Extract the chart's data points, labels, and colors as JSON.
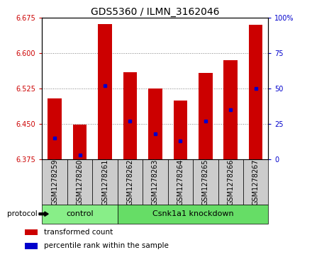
{
  "title": "GDS5360 / ILMN_3162046",
  "samples": [
    "GSM1278259",
    "GSM1278260",
    "GSM1278261",
    "GSM1278262",
    "GSM1278263",
    "GSM1278264",
    "GSM1278265",
    "GSM1278266",
    "GSM1278267"
  ],
  "bar_values": [
    6.505,
    6.448,
    6.662,
    6.56,
    6.525,
    6.5,
    6.558,
    6.585,
    6.66
  ],
  "percentile_values": [
    15,
    3,
    52,
    27,
    18,
    13,
    27,
    35,
    50
  ],
  "bar_bottom": 6.375,
  "ylim": [
    6.375,
    6.675
  ],
  "yticks": [
    6.375,
    6.45,
    6.525,
    6.6,
    6.675
  ],
  "right_yticks": [
    0,
    25,
    50,
    75,
    100
  ],
  "right_ylim": [
    0,
    100
  ],
  "bar_color": "#cc0000",
  "dot_color": "#0000cc",
  "bar_width": 0.55,
  "groups": [
    {
      "label": "control",
      "start": 0,
      "end": 3,
      "color": "#88ee88"
    },
    {
      "label": "Csnk1a1 knockdown",
      "start": 3,
      "end": 9,
      "color": "#66dd66"
    }
  ],
  "protocol_label": "protocol",
  "legend_items": [
    {
      "label": "transformed count",
      "color": "#cc0000"
    },
    {
      "label": "percentile rank within the sample",
      "color": "#0000cc"
    }
  ],
  "title_fontsize": 10,
  "tick_fontsize": 7,
  "label_fontsize": 7.5,
  "group_fontsize": 8,
  "left_tick_color": "#cc0000",
  "right_tick_color": "#0000cc",
  "sample_box_color": "#cccccc",
  "right_labels": [
    "0",
    "25",
    "50",
    "75",
    "100%"
  ]
}
